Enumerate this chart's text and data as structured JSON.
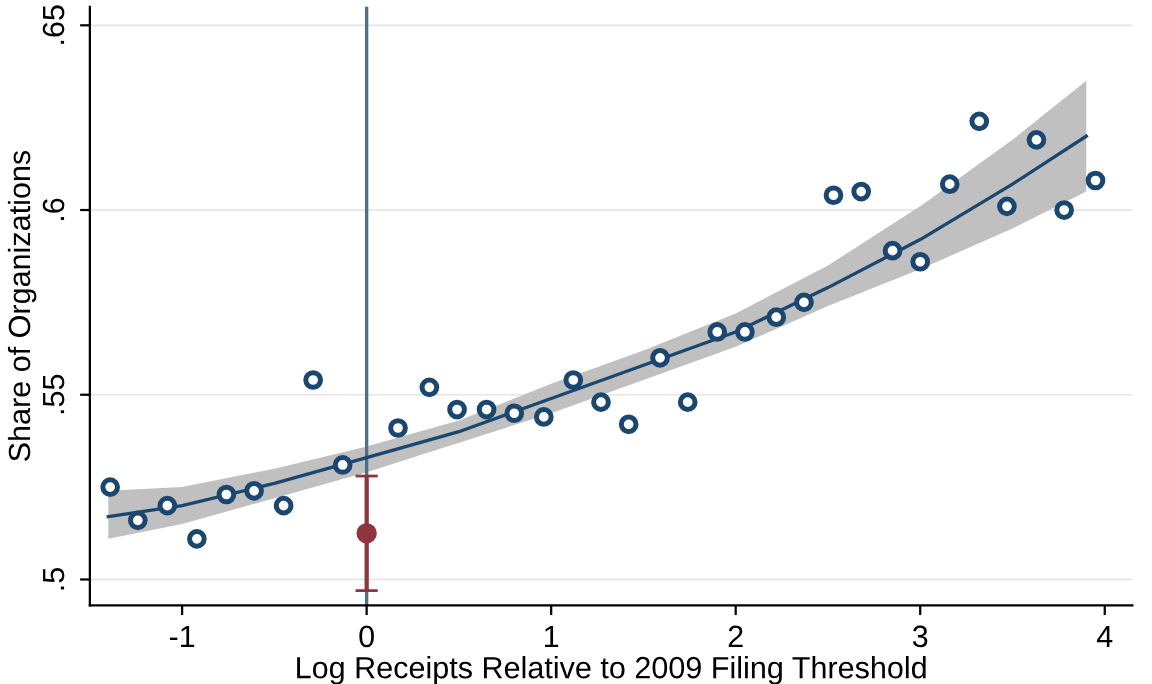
{
  "chart_data": {
    "type": "scatter",
    "xlabel": "Log Receipts Relative to 2009 Filing Threshold",
    "ylabel": "Share of Organizations",
    "xlim": [
      -1.5,
      4.15
    ],
    "ylim": [
      0.493,
      0.655
    ],
    "xticks": [
      -1,
      0,
      1,
      2,
      3,
      4
    ],
    "yticks": [
      {
        "value": 0.5,
        "label": ".5"
      },
      {
        "value": 0.55,
        "label": ".55"
      },
      {
        "value": 0.6,
        "label": ".6"
      },
      {
        "value": 0.65,
        "label": ".65"
      }
    ],
    "grid": "y",
    "legend": false,
    "ref_lines": [
      {
        "axis": "x",
        "value": 0,
        "color": "#4e6f8c"
      }
    ],
    "series": [
      {
        "type": "line",
        "color": "#1a476f",
        "marker": "none",
        "x": [
          -1.4,
          -1,
          -0.5,
          0,
          0.5,
          1,
          1.5,
          2,
          2.5,
          3,
          3.5,
          3.9
        ],
        "values": [
          0.517,
          0.52,
          0.526,
          0.533,
          0.54,
          0.549,
          0.558,
          0.567,
          0.579,
          0.592,
          0.607,
          0.62
        ],
        "lower": [
          0.511,
          0.515,
          0.522,
          0.529,
          0.537,
          0.545,
          0.554,
          0.563,
          0.574,
          0.584,
          0.595,
          0.605
        ],
        "upper": [
          0.524,
          0.525,
          0.53,
          0.536,
          0.543,
          0.553,
          0.562,
          0.572,
          0.585,
          0.601,
          0.619,
          0.635
        ]
      },
      {
        "color": "#1a476f",
        "marker": "circle",
        "x": [
          -1.39,
          -1.24,
          -1.08,
          -0.92,
          -0.76,
          -0.61,
          -0.45,
          -0.29,
          -0.13,
          0.17,
          0.34,
          0.49,
          0.65,
          0.8,
          0.96,
          1.12,
          1.27,
          1.42,
          1.59,
          1.74,
          1.9,
          2.05,
          2.22,
          2.37,
          2.53,
          2.68,
          2.85,
          3.0,
          3.16,
          3.32,
          3.47,
          3.63,
          3.78,
          3.95
        ],
        "values": [
          0.525,
          0.516,
          0.52,
          0.511,
          0.523,
          0.524,
          0.52,
          0.554,
          0.531,
          0.541,
          0.552,
          0.546,
          0.546,
          0.545,
          0.544,
          0.554,
          0.548,
          0.542,
          0.56,
          0.548,
          0.567,
          0.567,
          0.571,
          0.575,
          0.604,
          0.605,
          0.589,
          0.586,
          0.607,
          0.624,
          0.601,
          0.619,
          0.6,
          0.608
        ]
      },
      {
        "color": "#90353b",
        "marker": "circle",
        "x": [
          0
        ],
        "values": [
          0.5125
        ],
        "errors": [
          [
            0.497,
            0.528
          ]
        ]
      }
    ]
  }
}
